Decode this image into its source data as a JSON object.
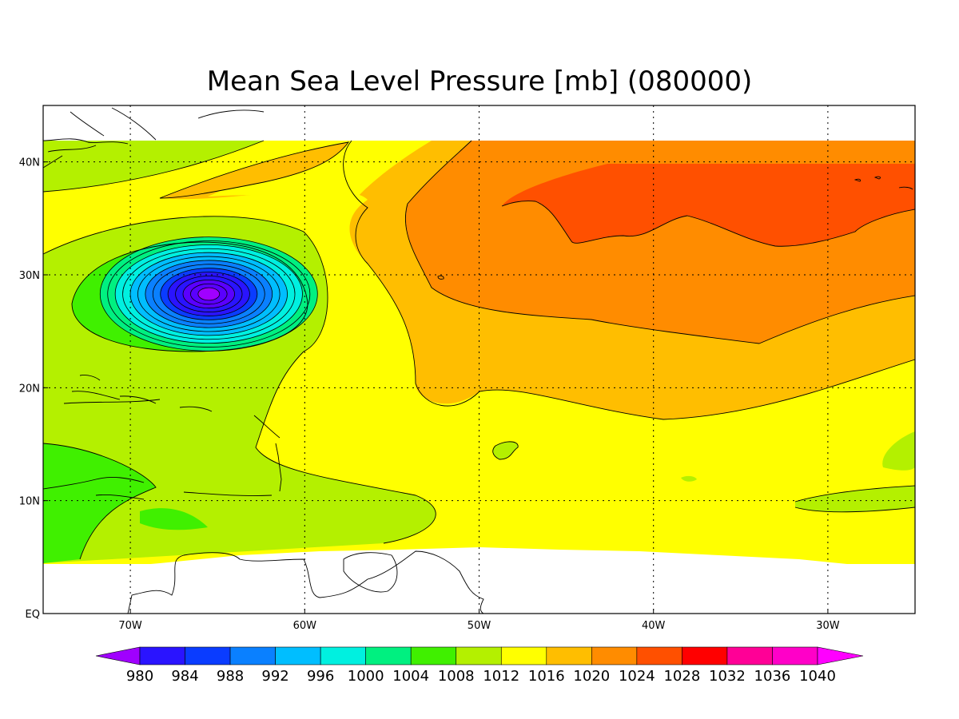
{
  "title": "Mean Sea Level Pressure [mb] (080000)",
  "map": {
    "lon_range": [
      -75,
      -25
    ],
    "lat_range": [
      0,
      45
    ],
    "data_lat_max": 42,
    "x_ticks": [
      {
        "lon": -70,
        "label": "70W"
      },
      {
        "lon": -60,
        "label": "60W"
      },
      {
        "lon": -50,
        "label": "50W"
      },
      {
        "lon": -40,
        "label": "40W"
      },
      {
        "lon": -30,
        "label": "30W"
      }
    ],
    "y_ticks": [
      {
        "lat": 0,
        "label": "EQ"
      },
      {
        "lat": 10,
        "label": "10N"
      },
      {
        "lat": 20,
        "label": "20N"
      },
      {
        "lat": 30,
        "label": "30N"
      },
      {
        "lat": 40,
        "label": "40N"
      }
    ],
    "grid": true,
    "low_center": {
      "lon": -65.5,
      "lat": 28.3,
      "min_value": 980
    }
  },
  "colorbar": {
    "levels": [
      "980",
      "984",
      "988",
      "992",
      "996",
      "1000",
      "1004",
      "1008",
      "1012",
      "1016",
      "1020",
      "1024",
      "1028",
      "1032",
      "1036",
      "1040"
    ],
    "colors": [
      "#a000ff",
      "#2a14ff",
      "#0a3cff",
      "#0a80ff",
      "#00beff",
      "#00f0e0",
      "#00f080",
      "#40f000",
      "#b4f000",
      "#ffff00",
      "#ffbe00",
      "#ff8c00",
      "#ff5000",
      "#ff0000",
      "#ff0096",
      "#ff00c8",
      "#ff00ff"
    ]
  },
  "fields": {
    "c1004": "#40f000",
    "c1008": "#b4f000",
    "c1012": "#ffff00",
    "c1016": "#ffbe00",
    "c1020": "#ff8c00",
    "c1024": "#ff5000"
  }
}
